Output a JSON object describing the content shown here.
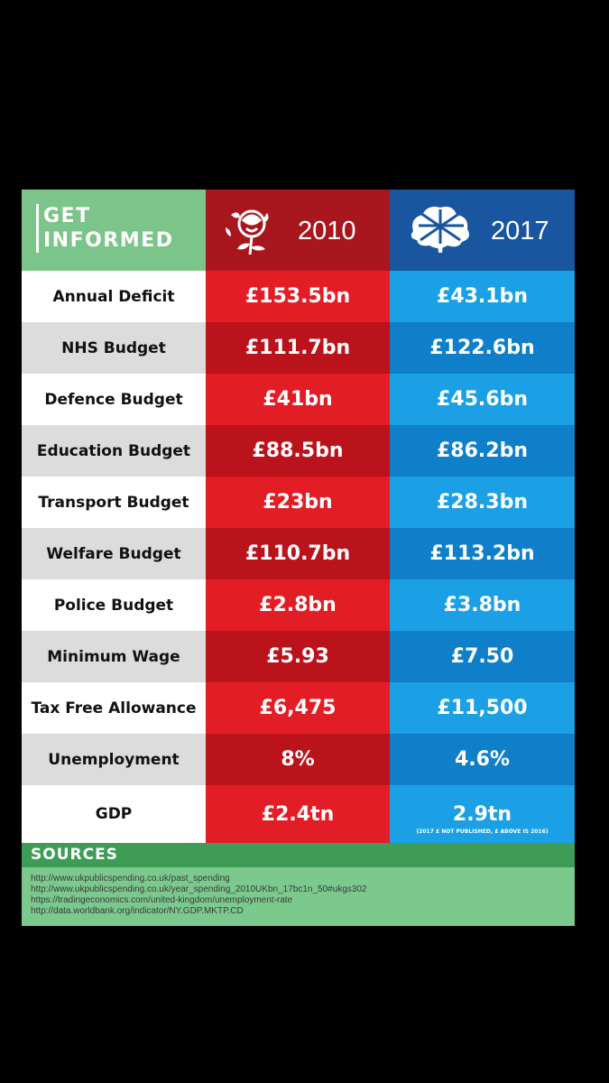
{
  "header": {
    "get_informed_line1": "GET",
    "get_informed_line2": "INFORMED",
    "year_2010": "2010",
    "year_2017": "2017",
    "logo_2010_icon": "labour-rose-icon",
    "logo_2017_icon": "conservative-tree-icon"
  },
  "colors": {
    "header_green": "#7bc48a",
    "header_red": "#a8161e",
    "header_blue": "#1a55a0",
    "red_light": "#e31d25",
    "red_dark": "#ba131b",
    "blue_light": "#1ba0e5",
    "blue_dark": "#0e7fc8"
  },
  "rows": [
    {
      "label": "Annual Deficit",
      "v2010": "£153.5bn",
      "v2017": "£43.1bn"
    },
    {
      "label": "NHS Budget",
      "v2010": "£111.7bn",
      "v2017": "£122.6bn"
    },
    {
      "label": "Defence Budget",
      "v2010": "£41bn",
      "v2017": "£45.6bn"
    },
    {
      "label": "Education Budget",
      "v2010": "£88.5bn",
      "v2017": "£86.2bn"
    },
    {
      "label": "Transport Budget",
      "v2010": "£23bn",
      "v2017": "£28.3bn"
    },
    {
      "label": "Welfare Budget",
      "v2010": "£110.7bn",
      "v2017": "£113.2bn"
    },
    {
      "label": "Police Budget",
      "v2010": "£2.8bn",
      "v2017": "£3.8bn"
    },
    {
      "label": "Minimum Wage",
      "v2010": "£5.93",
      "v2017": "£7.50"
    },
    {
      "label": "Tax Free Allowance",
      "v2010": "£6,475",
      "v2017": "£11,500"
    },
    {
      "label": "Unemployment",
      "v2010": "8%",
      "v2017": "4.6%"
    },
    {
      "label": "GDP",
      "v2010": "£2.4tn",
      "v2017": "2.9tn"
    }
  ],
  "gdp_note": "(2017 £ NOT PUBLISHED, £ ABOVE IS 2016)",
  "sources": {
    "title": "SOURCES",
    "links": [
      "http://www.ukpublicspending.co.uk/past_spending",
      "http://www.ukpublicspending.co.uk/year_spending_2010UKbn_17bc1n_50#ukgs302",
      "https://tradingeconomics.com/united-kingdom/unemployment-rate",
      "http://data.worldbank.org/indicator/NY.GDP.MKTP.CD"
    ]
  }
}
